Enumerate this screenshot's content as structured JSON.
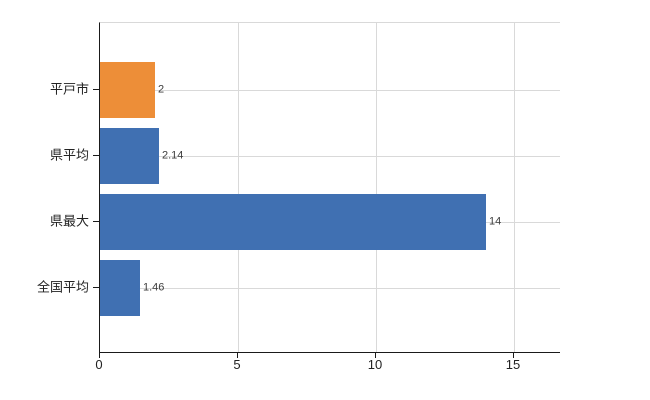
{
  "chart_data": {
    "type": "bar",
    "orientation": "horizontal",
    "title": "",
    "xlabel": "",
    "ylabel": "",
    "categories": [
      "平戸市",
      "県平均",
      "県最大",
      "全国平均"
    ],
    "values": [
      2,
      2.14,
      14,
      1.46
    ],
    "value_labels": [
      "2",
      "2.14",
      "14",
      "1.46"
    ],
    "bar_colors": [
      "#ED8E38",
      "#4070B2",
      "#4070B2",
      "#4070B2"
    ],
    "x_ticks": [
      0,
      5,
      10,
      15
    ],
    "x_tick_labels": [
      "0",
      "5",
      "10",
      "15"
    ],
    "xlim": [
      0,
      16.7
    ],
    "grid": true,
    "grid_horizontal_at_categories": true,
    "legend": false
  },
  "colors": {
    "background": "#FFFFFF",
    "axis": "#1A1A1A",
    "grid": "#D9D9D9",
    "category_text": "#222222",
    "value_text": "#3C3C3C",
    "highlight_bar": "#ED8E38",
    "default_bar": "#4070B2"
  }
}
